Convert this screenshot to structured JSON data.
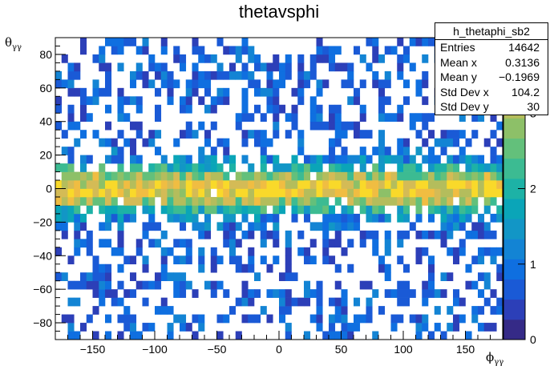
{
  "chart_data": {
    "type": "heatmap",
    "title": "thetavsphi",
    "xlabel": "ϕγγ",
    "ylabel": "θγγ",
    "xlim": [
      -180,
      180
    ],
    "ylim": [
      -90,
      90
    ],
    "x_ticks": [
      -150,
      -100,
      -50,
      0,
      50,
      100,
      150
    ],
    "y_ticks": [
      -80,
      -60,
      -40,
      -20,
      0,
      20,
      40,
      60,
      80
    ],
    "z_ticks": [
      0,
      1,
      2,
      3
    ],
    "zlim": [
      0,
      4
    ],
    "colormap": "parula",
    "bins": {
      "nx": 72,
      "ny": 36
    },
    "rows_description": "counts per theta bin band, peaked near theta=0",
    "peak_counts": 4
  },
  "stats_box": {
    "name": "h_thetaphi_sb2",
    "rows": [
      {
        "label": "Entries",
        "value": "14642"
      },
      {
        "label": "Mean x",
        "value": "0.3136"
      },
      {
        "label": "Mean y",
        "value": "−0.1969"
      },
      {
        "label": "Std Dev x",
        "value": "104.2"
      },
      {
        "label": "Std Dev y",
        "value": "30"
      }
    ]
  },
  "labels": {
    "title": "thetavsphi",
    "theta": "θ",
    "phi": "ϕ",
    "sub": "γγ"
  }
}
